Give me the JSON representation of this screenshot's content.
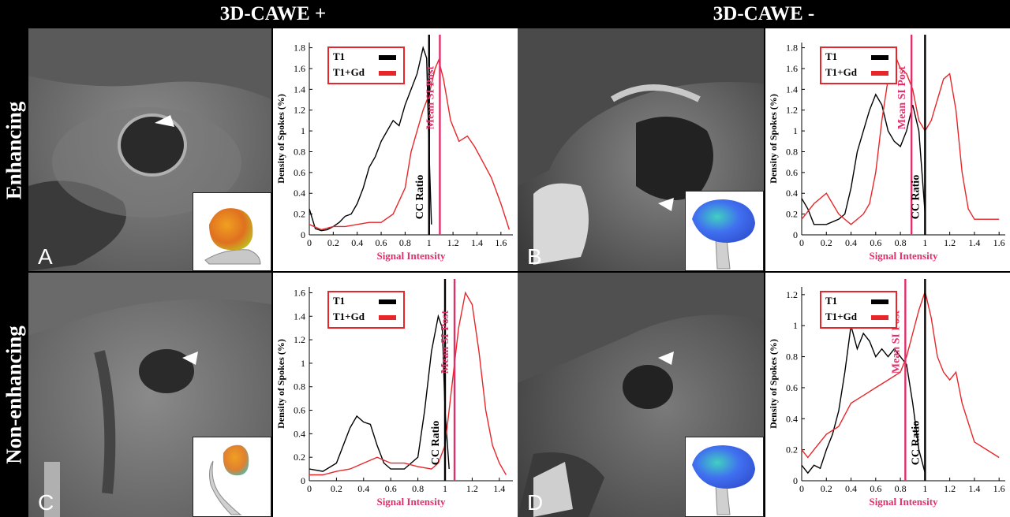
{
  "header": {
    "col_pos": "3D-CAWE +",
    "col_neg": "3D-CAWE -",
    "row_enh": "Enhancing",
    "row_non": "Non-enhancing"
  },
  "panels": {
    "A": {
      "letter": "A"
    },
    "B": {
      "letter": "B"
    },
    "C": {
      "letter": "C"
    },
    "D": {
      "letter": "D"
    }
  },
  "colors": {
    "t1": "#000000",
    "t1gd": "#e8262a",
    "marker": "#e0306a",
    "label": "#e0306a"
  },
  "chart_data": [
    {
      "type": "line",
      "panel": "A",
      "xlabel": "Signal Intensity",
      "ylabel": "Density of Spokes (%)",
      "xlim": [
        0,
        1.7
      ],
      "ylim": [
        0,
        1.85
      ],
      "xticks": [
        "0",
        "0.2",
        "0.4",
        "0.6",
        "0.8",
        "1",
        "1.2",
        "1.4",
        "1.6"
      ],
      "xtick_values": [
        0,
        0.2,
        0.4,
        0.6,
        0.8,
        1,
        1.2,
        1.4,
        1.6
      ],
      "yticks": [
        "0",
        "0.2",
        "0.4",
        "0.6",
        "0.8",
        "1",
        "1.2",
        "1.4",
        "1.6",
        "1.8"
      ],
      "ytick_values": [
        0,
        0.2,
        0.4,
        0.6,
        0.8,
        1,
        1.2,
        1.4,
        1.6,
        1.8
      ],
      "legend": {
        "position": "top-left",
        "entries": [
          "T1",
          "T1+Gd"
        ]
      },
      "series": [
        {
          "name": "T1",
          "x": [
            0,
            0.05,
            0.1,
            0.15,
            0.2,
            0.25,
            0.3,
            0.35,
            0.4,
            0.45,
            0.5,
            0.55,
            0.6,
            0.65,
            0.7,
            0.75,
            0.8,
            0.85,
            0.9,
            0.95,
            0.98,
            1.0,
            1.02
          ],
          "y": [
            0.25,
            0.06,
            0.04,
            0.05,
            0.08,
            0.12,
            0.18,
            0.2,
            0.3,
            0.45,
            0.65,
            0.75,
            0.9,
            1.0,
            1.1,
            1.05,
            1.25,
            1.4,
            1.55,
            1.8,
            1.7,
            0.8,
            0.1
          ]
        },
        {
          "name": "T1+Gd",
          "x": [
            0,
            0.1,
            0.2,
            0.3,
            0.4,
            0.5,
            0.6,
            0.7,
            0.8,
            0.85,
            0.9,
            0.95,
            1.0,
            1.05,
            1.08,
            1.12,
            1.18,
            1.25,
            1.32,
            1.38,
            1.45,
            1.52,
            1.6,
            1.67
          ],
          "y": [
            0.1,
            0.05,
            0.08,
            0.08,
            0.1,
            0.12,
            0.12,
            0.2,
            0.45,
            0.8,
            1.0,
            1.2,
            1.35,
            1.6,
            1.68,
            1.5,
            1.1,
            0.9,
            0.95,
            0.85,
            0.7,
            0.55,
            0.3,
            0.05
          ]
        }
      ],
      "markers": [
        {
          "label": "CC Ratio",
          "x": 1.0,
          "color": "black"
        },
        {
          "label": "Mean SI Post",
          "x": 1.09,
          "color": "red"
        }
      ]
    },
    {
      "type": "line",
      "panel": "B",
      "xlabel": "Signal Intensity",
      "ylabel": "Density of Spokes (%)",
      "xlim": [
        0,
        1.65
      ],
      "ylim": [
        0,
        1.85
      ],
      "xticks": [
        "0",
        "0.2",
        "0.4",
        "0.6",
        "0.8",
        "1",
        "1.2",
        "1.4",
        "1.6"
      ],
      "xtick_values": [
        0,
        0.2,
        0.4,
        0.6,
        0.8,
        1,
        1.2,
        1.4,
        1.6
      ],
      "yticks": [
        "0",
        "0.2",
        "0.4",
        "0.6",
        "0.8",
        "1",
        "1.2",
        "1.4",
        "1.6",
        "1.8"
      ],
      "ytick_values": [
        0,
        0.2,
        0.4,
        0.6,
        0.8,
        1,
        1.2,
        1.4,
        1.6,
        1.8
      ],
      "legend": {
        "position": "top-left",
        "entries": [
          "T1",
          "T1+Gd"
        ]
      },
      "series": [
        {
          "name": "T1",
          "x": [
            0,
            0.05,
            0.1,
            0.2,
            0.3,
            0.35,
            0.4,
            0.45,
            0.5,
            0.55,
            0.6,
            0.65,
            0.7,
            0.75,
            0.8,
            0.85,
            0.9,
            0.95,
            1.0
          ],
          "y": [
            0.35,
            0.25,
            0.1,
            0.1,
            0.15,
            0.2,
            0.45,
            0.8,
            1.0,
            1.2,
            1.35,
            1.25,
            1.0,
            0.9,
            0.85,
            1.0,
            1.25,
            1.0,
            0.2
          ]
        },
        {
          "name": "T1+Gd",
          "x": [
            0,
            0.1,
            0.2,
            0.3,
            0.4,
            0.5,
            0.55,
            0.6,
            0.65,
            0.7,
            0.75,
            0.8,
            0.85,
            0.9,
            0.95,
            1.0,
            1.05,
            1.1,
            1.15,
            1.2,
            1.25,
            1.3,
            1.35,
            1.4,
            1.5,
            1.6
          ],
          "y": [
            0.15,
            0.3,
            0.4,
            0.2,
            0.1,
            0.2,
            0.3,
            0.6,
            1.1,
            1.5,
            1.75,
            1.6,
            1.55,
            1.4,
            1.1,
            1.0,
            1.1,
            1.3,
            1.5,
            1.55,
            1.2,
            0.6,
            0.25,
            0.15,
            0.15,
            0.15
          ]
        }
      ],
      "markers": [
        {
          "label": "Mean SI Post",
          "x": 0.89,
          "color": "red"
        },
        {
          "label": "CC Ratio",
          "x": 1.0,
          "color": "black"
        }
      ]
    },
    {
      "type": "line",
      "panel": "C",
      "xlabel": "Signal Intensity",
      "ylabel": "Density of Spokes (%)",
      "xlim": [
        0,
        1.5
      ],
      "ylim": [
        0,
        1.65
      ],
      "xticks": [
        "0",
        "0.2",
        "0.4",
        "0.6",
        "0.8",
        "1",
        "1.2",
        "1.4"
      ],
      "xtick_values": [
        0,
        0.2,
        0.4,
        0.6,
        0.8,
        1,
        1.2,
        1.4
      ],
      "yticks": [
        "0",
        "0.2",
        "0.4",
        "0.6",
        "0.8",
        "1",
        "1.2",
        "1.4",
        "1.6"
      ],
      "ytick_values": [
        0,
        0.2,
        0.4,
        0.6,
        0.8,
        1,
        1.2,
        1.4,
        1.6
      ],
      "legend": {
        "position": "top-left",
        "entries": [
          "T1",
          "T1+Gd"
        ]
      },
      "series": [
        {
          "name": "T1",
          "x": [
            0,
            0.1,
            0.2,
            0.25,
            0.3,
            0.35,
            0.4,
            0.45,
            0.5,
            0.55,
            0.6,
            0.7,
            0.8,
            0.85,
            0.9,
            0.95,
            0.98,
            1.0,
            1.03
          ],
          "y": [
            0.1,
            0.08,
            0.15,
            0.3,
            0.45,
            0.55,
            0.5,
            0.48,
            0.3,
            0.15,
            0.1,
            0.1,
            0.2,
            0.6,
            1.1,
            1.4,
            1.3,
            0.6,
            0.1
          ]
        },
        {
          "name": "T1+Gd",
          "x": [
            0,
            0.1,
            0.2,
            0.3,
            0.4,
            0.5,
            0.6,
            0.7,
            0.8,
            0.9,
            0.95,
            1.0,
            1.05,
            1.1,
            1.15,
            1.2,
            1.25,
            1.3,
            1.35,
            1.4,
            1.45
          ],
          "y": [
            0.05,
            0.05,
            0.08,
            0.1,
            0.15,
            0.2,
            0.15,
            0.15,
            0.12,
            0.1,
            0.15,
            0.3,
            0.8,
            1.3,
            1.6,
            1.5,
            1.1,
            0.6,
            0.3,
            0.15,
            0.05
          ]
        }
      ],
      "markers": [
        {
          "label": "CC Ratio",
          "x": 1.0,
          "color": "black"
        },
        {
          "label": "Mean SI Post",
          "x": 1.07,
          "color": "red"
        }
      ]
    },
    {
      "type": "line",
      "panel": "D",
      "xlabel": "Signal Intensity",
      "ylabel": "Density of Spokes (%)",
      "xlim": [
        0,
        1.65
      ],
      "ylim": [
        0,
        1.25
      ],
      "xticks": [
        "0",
        "0.2",
        "0.4",
        "0.6",
        "0.8",
        "1",
        "1.2",
        "1.4",
        "1.6"
      ],
      "xtick_values": [
        0,
        0.2,
        0.4,
        0.6,
        0.8,
        1,
        1.2,
        1.4,
        1.6
      ],
      "yticks": [
        "0",
        "0.2",
        "0.4",
        "0.6",
        "0.8",
        "1",
        "1.2"
      ],
      "ytick_values": [
        0,
        0.2,
        0.4,
        0.6,
        0.8,
        1,
        1.2
      ],
      "legend": {
        "position": "top-left",
        "entries": [
          "T1",
          "T1+Gd"
        ]
      },
      "series": [
        {
          "name": "T1",
          "x": [
            0,
            0.05,
            0.1,
            0.15,
            0.2,
            0.25,
            0.3,
            0.35,
            0.4,
            0.45,
            0.5,
            0.55,
            0.6,
            0.65,
            0.7,
            0.75,
            0.8,
            0.85,
            0.9,
            0.95,
            1.0
          ],
          "y": [
            0.1,
            0.05,
            0.1,
            0.08,
            0.2,
            0.3,
            0.45,
            0.7,
            1.0,
            0.85,
            0.95,
            0.9,
            0.8,
            0.85,
            0.8,
            0.85,
            0.8,
            0.75,
            0.5,
            0.2,
            0.05
          ]
        },
        {
          "name": "T1+Gd",
          "x": [
            0,
            0.05,
            0.1,
            0.2,
            0.3,
            0.4,
            0.5,
            0.6,
            0.7,
            0.8,
            0.85,
            0.9,
            0.95,
            1.0,
            1.05,
            1.1,
            1.15,
            1.2,
            1.25,
            1.3,
            1.4,
            1.5,
            1.6
          ],
          "y": [
            0.2,
            0.15,
            0.2,
            0.3,
            0.35,
            0.5,
            0.55,
            0.6,
            0.65,
            0.7,
            0.8,
            0.95,
            1.1,
            1.22,
            1.05,
            0.8,
            0.7,
            0.65,
            0.7,
            0.5,
            0.25,
            0.2,
            0.15
          ]
        }
      ],
      "markers": [
        {
          "label": "Mean SI Post",
          "x": 0.84,
          "color": "red"
        },
        {
          "label": "CC Ratio",
          "x": 1.0,
          "color": "black"
        }
      ]
    }
  ]
}
